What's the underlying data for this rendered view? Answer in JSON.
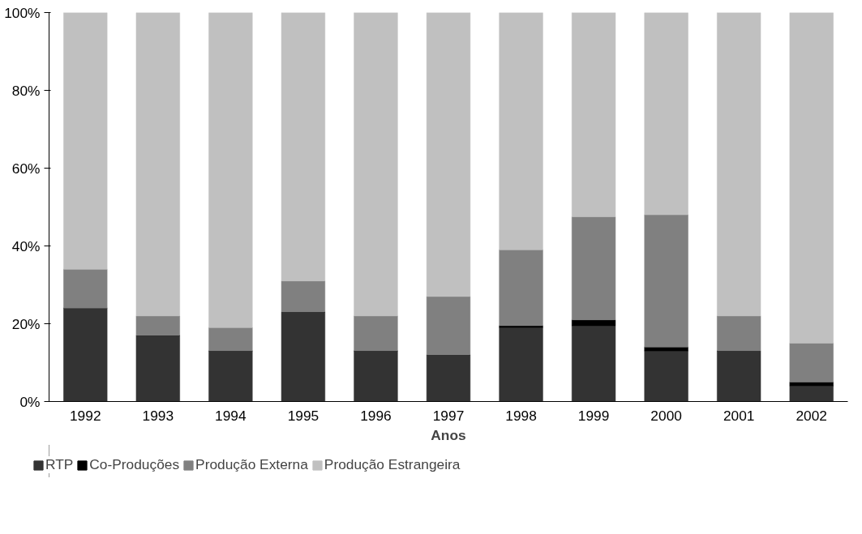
{
  "chart_data": {
    "type": "bar",
    "stacked": true,
    "xlabel": "Anos",
    "categories": [
      "1992",
      "1993",
      "1994",
      "1995",
      "1996",
      "1997",
      "1998",
      "1999",
      "2000",
      "2001",
      "2002"
    ],
    "series": [
      {
        "name": "RTP",
        "color": "#333333",
        "values": [
          24,
          17,
          13,
          23,
          13,
          12,
          19,
          19.5,
          13,
          13,
          4
        ]
      },
      {
        "name": "Co-Produções",
        "color": "#000000",
        "values": [
          0,
          0,
          0,
          0,
          0,
          0,
          0.5,
          1.5,
          1,
          0,
          1
        ]
      },
      {
        "name": "Produção Externa",
        "color": "#808080",
        "values": [
          10,
          5,
          6,
          8,
          9,
          15,
          19.5,
          26.5,
          34,
          9,
          10
        ]
      },
      {
        "name": "Produção Estrangeira",
        "color": "#c0c0c0",
        "values": [
          66,
          78,
          81,
          69,
          78,
          73,
          61,
          52.5,
          52,
          78,
          85
        ]
      }
    ],
    "ylim": [
      0,
      100
    ],
    "yticks": [
      {
        "value": 0,
        "label": "0%"
      },
      {
        "value": 20,
        "label": "20%"
      },
      {
        "value": 40,
        "label": "40%"
      },
      {
        "value": 60,
        "label": "60%"
      },
      {
        "value": 80,
        "label": "80%"
      },
      {
        "value": 100,
        "label": "100%"
      }
    ],
    "grid": false,
    "legend": "bottom left"
  }
}
